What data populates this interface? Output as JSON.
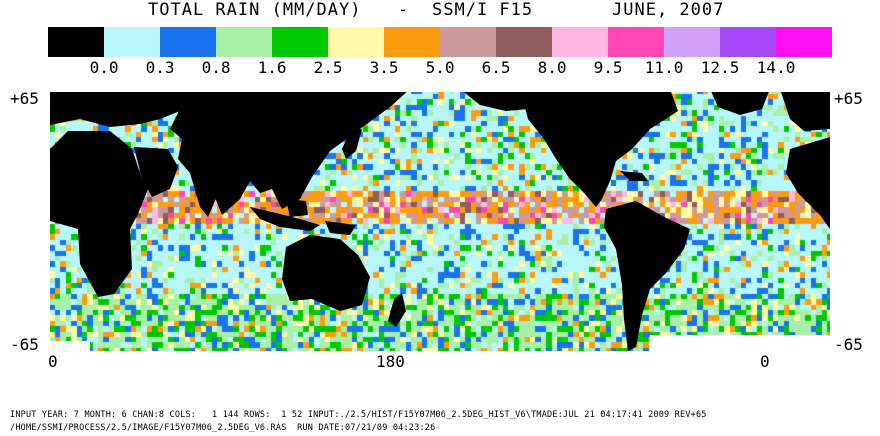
{
  "title": {
    "product": "TOTAL RAIN (MM/DAY)",
    "separator": "-",
    "instrument": "SSM/I F15",
    "period": "JUNE, 2007"
  },
  "legend": {
    "colors": [
      "#000000",
      "#b7f6f9",
      "#1874f0",
      "#a8f0a8",
      "#00c800",
      "#fffaa8",
      "#ff9b0e",
      "#cc9a9a",
      "#8e5d5d",
      "#ffb6e1",
      "#ff46b4",
      "#cfa0f8",
      "#a448f8",
      "#ff10f4"
    ],
    "labels": [
      "0.0",
      "0.3",
      "0.8",
      "1.6",
      "2.5",
      "3.5",
      "5.0",
      "6.5",
      "8.0",
      "9.5",
      "11.0",
      "12.5",
      "14.0"
    ]
  },
  "axes": {
    "lat_top": "+65",
    "lat_bottom": "-65",
    "lon_left": "0",
    "lon_mid": "180",
    "lon_right": "0"
  },
  "footer": {
    "line1": "INPUT YEAR: 7 MONTH: 6 CHAN:8 COLS:   1 144 ROWS:  1 52 INPUT:./2.5/HIST/F15Y07M06_2.5DEG_HIST_V6\\TMADE:JUL 21 04:17:41 2009 REV+65",
    "line2": "/HOME/SSMI/PROCESS/2.5/IMAGE/F15Y07M06_2.5DEG_V6.RAS  RUN DATE:07/21/09 04:23:26"
  },
  "colors": {
    "land": "#000000",
    "ocean_base": "#b7f6f9",
    "sea_ice": "#ffffff"
  }
}
